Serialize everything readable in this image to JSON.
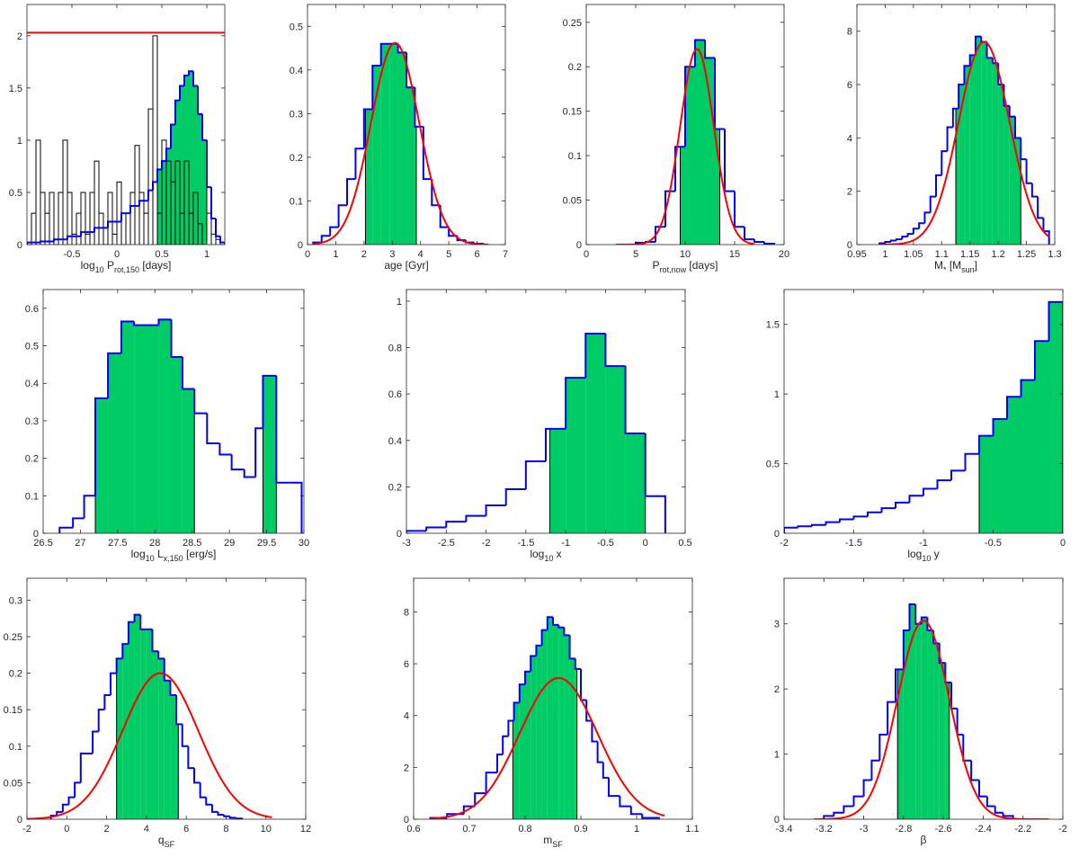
{
  "colors": {
    "fill": "#00cc66",
    "hist_line": "#0000ff",
    "fit": "#ff0000",
    "other": "#000000",
    "axis": "#262626"
  },
  "chart_data": [
    {
      "type": "histogram",
      "xlabel": {
        "main": "log",
        "sub1": "10",
        "mid": " P",
        "sub2": "rot,150",
        "tail": " [days]"
      },
      "xlim": [
        -1,
        1.2
      ],
      "ylim": [
        0,
        2.3
      ],
      "xticks": [
        -0.5,
        0,
        0.5,
        1
      ],
      "xtick_labels": [
        "-0.5",
        "0",
        "0.5",
        "1"
      ],
      "yticks": [
        0,
        0.5,
        1,
        1.5,
        2
      ],
      "ytick_labels": [
        "0",
        "0.5",
        "1",
        "1.5",
        "2"
      ],
      "blue_hist": {
        "edges": [
          -1,
          -0.85,
          -0.7,
          -0.55,
          -0.4,
          -0.25,
          -0.1,
          0.05,
          0.15,
          0.25,
          0.35,
          0.4,
          0.45,
          0.5,
          0.55,
          0.6,
          0.65,
          0.7,
          0.75,
          0.8,
          0.85,
          0.9,
          0.95,
          1.0,
          1.05,
          1.1,
          1.15,
          1.2
        ],
        "values": [
          0.02,
          0.03,
          0.05,
          0.08,
          0.12,
          0.16,
          0.22,
          0.3,
          0.37,
          0.42,
          0.52,
          0.6,
          0.72,
          0.8,
          0.92,
          1.15,
          1.38,
          1.52,
          1.62,
          1.66,
          1.52,
          1.25,
          1.0,
          0.55,
          0.25,
          0.08,
          0.02
        ]
      },
      "shade_range": [
        0.45,
        1.0
      ],
      "black_hist": {
        "edges": [
          -0.95,
          -0.9,
          -0.85,
          -0.8,
          -0.75,
          -0.7,
          -0.65,
          -0.6,
          -0.55,
          -0.5,
          -0.45,
          -0.4,
          -0.35,
          -0.3,
          -0.25,
          -0.2,
          -0.15,
          -0.1,
          -0.05,
          0,
          0.05,
          0.1,
          0.15,
          0.2,
          0.25,
          0.3,
          0.35,
          0.4,
          0.45,
          0.5,
          0.55,
          0.6,
          0.65,
          0.7,
          0.75,
          0.8,
          0.85,
          0.9,
          0.95,
          1.0,
          1.05,
          1.1,
          1.15
        ],
        "values": [
          0.3,
          1.0,
          0.5,
          0.3,
          0.5,
          0.0,
          0.5,
          1.0,
          0.5,
          0.1,
          0.3,
          0.5,
          0.1,
          0.5,
          0.8,
          0.3,
          0.0,
          0.5,
          0.1,
          0.6,
          0.0,
          0.3,
          0.5,
          0.95,
          0.5,
          0.3,
          1.3,
          2.0,
          0.3,
          1.0,
          0.8,
          0.6,
          0.8,
          0.3,
          0.8,
          0.3,
          0.5,
          0.2,
          0.0,
          0.3,
          0.1,
          0.05
        ]
      },
      "hline": 2.03
    },
    {
      "type": "histogram",
      "xlabel": {
        "main": "age [Gyr]"
      },
      "xlim": [
        0,
        7
      ],
      "ylim": [
        0,
        0.55
      ],
      "xticks": [
        0,
        1,
        2,
        3,
        4,
        5,
        6,
        7
      ],
      "xtick_labels": [
        "0",
        "1",
        "2",
        "3",
        "4",
        "5",
        "6",
        "7"
      ],
      "yticks": [
        0,
        0.1,
        0.2,
        0.3,
        0.4,
        0.5
      ],
      "ytick_labels": [
        "0",
        "0.1",
        "0.2",
        "0.3",
        "0.4",
        "0.5"
      ],
      "blue_hist": {
        "edges": [
          0.2,
          0.5,
          0.8,
          1.1,
          1.4,
          1.7,
          2.0,
          2.3,
          2.6,
          2.9,
          3.2,
          3.5,
          3.8,
          4.1,
          4.4,
          4.7,
          5.0,
          5.3,
          5.6,
          5.9,
          6.2
        ],
        "values": [
          0.005,
          0.02,
          0.04,
          0.09,
          0.15,
          0.22,
          0.31,
          0.41,
          0.46,
          0.46,
          0.44,
          0.36,
          0.27,
          0.15,
          0.09,
          0.04,
          0.02,
          0.01,
          0.005,
          0.002
        ]
      },
      "shade_range": [
        2.05,
        3.85
      ],
      "fit": {
        "mu": 3.1,
        "sigma": 0.85,
        "amp": 0.462,
        "range": [
          0.2,
          6.4
        ]
      }
    },
    {
      "type": "histogram",
      "xlabel": {
        "main": "P",
        "sub1": "rot,now",
        "tail": " [days]"
      },
      "xlim": [
        0,
        20
      ],
      "ylim": [
        0,
        0.27
      ],
      "xticks": [
        0,
        5,
        10,
        15,
        20
      ],
      "xtick_labels": [
        "0",
        "5",
        "10",
        "15",
        "20"
      ],
      "yticks": [
        0,
        0.05,
        0.1,
        0.15,
        0.2,
        0.25
      ],
      "ytick_labels": [
        "0",
        "0.05",
        "0.1",
        "0.15",
        "0.2",
        "0.25"
      ],
      "blue_hist": {
        "edges": [
          5,
          6,
          7,
          8,
          9,
          10,
          11,
          12,
          13,
          14,
          15,
          16,
          17,
          18,
          19
        ],
        "values": [
          0.002,
          0.003,
          0.02,
          0.06,
          0.11,
          0.2,
          0.23,
          0.21,
          0.13,
          0.06,
          0.02,
          0.006,
          0.003,
          0.001
        ]
      },
      "shade_range": [
        9.5,
        13.5
      ],
      "fit": {
        "mu": 11.2,
        "sigma": 1.7,
        "amp": 0.22,
        "range": [
          3,
          17
        ]
      }
    },
    {
      "type": "histogram",
      "xlabel": {
        "main": "M",
        "sub1": "*",
        "mid": " [M",
        "sub2": "sun",
        "tail": "]"
      },
      "xlim": [
        0.95,
        1.3
      ],
      "ylim": [
        0,
        9
      ],
      "xticks": [
        0.95,
        1,
        1.05,
        1.1,
        1.15,
        1.2,
        1.25,
        1.3
      ],
      "xtick_labels": [
        "0.95",
        "1",
        "1.05",
        "1.1",
        "1.15",
        "1.2",
        "1.25",
        "1.3"
      ],
      "yticks": [
        0,
        2,
        4,
        6,
        8
      ],
      "ytick_labels": [
        "0",
        "2",
        "4",
        "6",
        "8"
      ],
      "blue_hist": {
        "edges": [
          0.99,
          1.0,
          1.01,
          1.02,
          1.03,
          1.04,
          1.05,
          1.06,
          1.07,
          1.08,
          1.09,
          1.1,
          1.11,
          1.12,
          1.13,
          1.14,
          1.15,
          1.16,
          1.17,
          1.18,
          1.19,
          1.2,
          1.21,
          1.22,
          1.23,
          1.24,
          1.25,
          1.26,
          1.27,
          1.28,
          1.29
        ],
        "values": [
          0.05,
          0.1,
          0.15,
          0.2,
          0.3,
          0.4,
          0.6,
          0.8,
          1.2,
          1.8,
          2.6,
          3.5,
          4.4,
          5.1,
          6.0,
          6.7,
          7.1,
          7.8,
          7.6,
          7.0,
          6.8,
          6.0,
          5.2,
          4.8,
          4.0,
          3.2,
          2.3,
          1.8,
          1.0,
          0.5
        ]
      },
      "shade_range": [
        1.125,
        1.24
      ],
      "fit": {
        "mu": 1.175,
        "sigma": 0.045,
        "amp": 7.6,
        "range": [
          0.99,
          1.29
        ]
      }
    },
    {
      "type": "histogram",
      "xlabel": {
        "main": "log",
        "sub1": "10",
        "mid": " L",
        "sub2": "x,150",
        "tail": " [erg/s]"
      },
      "xlim": [
        26.5,
        30
      ],
      "ylim": [
        0,
        0.65
      ],
      "xticks": [
        26.5,
        27,
        27.5,
        28,
        28.5,
        29,
        29.5,
        30
      ],
      "xtick_labels": [
        "26.5",
        "27",
        "27.5",
        "28",
        "28.5",
        "29",
        "29.5",
        "30"
      ],
      "yticks": [
        0,
        0.1,
        0.2,
        0.3,
        0.4,
        0.5,
        0.6
      ],
      "ytick_labels": [
        "0",
        "0.1",
        "0.2",
        "0.3",
        "0.4",
        "0.5",
        "0.6"
      ],
      "blue_hist": {
        "edges": [
          26.72,
          26.9,
          27.05,
          27.2,
          27.37,
          27.55,
          27.72,
          27.9,
          28.05,
          28.22,
          28.37,
          28.53,
          28.7,
          28.87,
          29.03,
          29.2,
          29.35,
          29.45,
          29.63,
          29.81,
          29.97
        ],
        "values": [
          0.015,
          0.04,
          0.1,
          0.36,
          0.48,
          0.565,
          0.555,
          0.555,
          0.57,
          0.47,
          0.385,
          0.32,
          0.24,
          0.21,
          0.17,
          0.15,
          0.28,
          0.42,
          0.135,
          0.135
        ]
      },
      "shade_range": [
        [
          27.2,
          28.53
        ],
        [
          29.45,
          29.63
        ]
      ]
    },
    {
      "type": "histogram",
      "xlabel": {
        "main": "log",
        "sub1": "10",
        "tail": " x"
      },
      "xlim": [
        -3,
        0.5
      ],
      "ylim": [
        0,
        1.05
      ],
      "xticks": [
        -3,
        -2.5,
        -2,
        -1.5,
        -1,
        -0.5,
        0,
        0.5
      ],
      "xtick_labels": [
        "-3",
        "-2.5",
        "-2",
        "-1.5",
        "-1",
        "-0.5",
        "0",
        "0.5"
      ],
      "yticks": [
        0,
        0.2,
        0.4,
        0.6,
        0.8,
        1
      ],
      "ytick_labels": [
        "0",
        "0.2",
        "0.4",
        "0.6",
        "0.8",
        "1"
      ],
      "blue_hist": {
        "edges": [
          -3.0,
          -2.75,
          -2.5,
          -2.25,
          -2.0,
          -1.75,
          -1.5,
          -1.25,
          -1.0,
          -0.75,
          -0.5,
          -0.25,
          0.0,
          0.25
        ],
        "values": [
          0.01,
          0.025,
          0.05,
          0.075,
          0.12,
          0.19,
          0.31,
          0.45,
          0.67,
          0.86,
          0.72,
          0.43,
          0.16
        ]
      },
      "shade_range": [
        -1.2,
        0.0
      ]
    },
    {
      "type": "histogram",
      "xlabel": {
        "main": "log",
        "sub1": "10",
        "tail": " y"
      },
      "xlim": [
        -2,
        0
      ],
      "ylim": [
        0,
        1.75
      ],
      "xticks": [
        -2,
        -1.5,
        -1,
        -0.5,
        0
      ],
      "xtick_labels": [
        "-2",
        "-1.5",
        "-1",
        "-0.5",
        "0"
      ],
      "yticks": [
        0,
        0.5,
        1,
        1.5
      ],
      "ytick_labels": [
        "0",
        "0.5",
        "1",
        "1.5"
      ],
      "blue_hist": {
        "edges": [
          -2.0,
          -1.9,
          -1.8,
          -1.7,
          -1.6,
          -1.5,
          -1.4,
          -1.3,
          -1.2,
          -1.1,
          -1.0,
          -0.9,
          -0.8,
          -0.7,
          -0.6,
          -0.5,
          -0.4,
          -0.3,
          -0.2,
          -0.1,
          0.0
        ],
        "values": [
          0.04,
          0.05,
          0.06,
          0.08,
          0.1,
          0.12,
          0.15,
          0.18,
          0.22,
          0.27,
          0.32,
          0.38,
          0.45,
          0.57,
          0.7,
          0.82,
          0.98,
          1.1,
          1.38,
          1.66
        ]
      },
      "shade_range": [
        -0.6,
        0.0
      ]
    },
    {
      "type": "histogram",
      "xlabel": {
        "main": "q",
        "sub1": "SF"
      },
      "xlim": [
        -2,
        12
      ],
      "ylim": [
        0,
        0.33
      ],
      "xticks": [
        -2,
        0,
        2,
        4,
        6,
        8,
        10,
        12
      ],
      "xtick_labels": [
        "-2",
        "0",
        "2",
        "4",
        "6",
        "8",
        "10",
        "12"
      ],
      "yticks": [
        0,
        0.05,
        0.1,
        0.15,
        0.2,
        0.25,
        0.3
      ],
      "ytick_labels": [
        "0",
        "0.05",
        "0.1",
        "0.15",
        "0.2",
        "0.25",
        "0.3"
      ],
      "blue_hist": {
        "edges": [
          -0.8,
          -0.5,
          -0.2,
          0.1,
          0.4,
          0.7,
          1.0,
          1.3,
          1.6,
          1.9,
          2.2,
          2.5,
          2.8,
          3.1,
          3.4,
          3.7,
          4.0,
          4.3,
          4.6,
          4.9,
          5.2,
          5.5,
          5.8,
          6.1,
          6.4,
          6.7,
          7.0,
          7.3,
          7.6,
          7.9,
          8.2,
          8.5,
          8.8
        ],
        "values": [
          0.005,
          0.01,
          0.02,
          0.03,
          0.05,
          0.09,
          0.09,
          0.12,
          0.15,
          0.17,
          0.2,
          0.22,
          0.24,
          0.27,
          0.28,
          0.26,
          0.26,
          0.23,
          0.22,
          0.19,
          0.17,
          0.13,
          0.1,
          0.07,
          0.05,
          0.03,
          0.02,
          0.01,
          0.006,
          0.004,
          0.002,
          0.001
        ]
      },
      "shade_range": [
        2.5,
        5.6
      ],
      "fit": {
        "mu": 4.7,
        "sigma": 1.9,
        "amp": 0.2,
        "range": [
          -2,
          10.3
        ]
      }
    },
    {
      "type": "histogram",
      "xlabel": {
        "main": "m",
        "sub1": "SF"
      },
      "xlim": [
        0.6,
        1.1
      ],
      "ylim": [
        0,
        9.3
      ],
      "xticks": [
        0.6,
        0.7,
        0.8,
        0.9,
        1,
        1.1
      ],
      "xtick_labels": [
        "0.6",
        "0.7",
        "0.8",
        "0.9",
        "1",
        "1.1"
      ],
      "yticks": [
        0,
        2,
        4,
        6,
        8
      ],
      "ytick_labels": [
        "0",
        "2",
        "4",
        "6",
        "8"
      ],
      "blue_hist": {
        "edges": [
          0.63,
          0.66,
          0.69,
          0.71,
          0.73,
          0.75,
          0.76,
          0.77,
          0.78,
          0.79,
          0.8,
          0.81,
          0.82,
          0.83,
          0.84,
          0.85,
          0.86,
          0.87,
          0.88,
          0.89,
          0.9,
          0.91,
          0.92,
          0.93,
          0.94,
          0.95,
          0.97,
          0.99,
          1.01,
          1.04
        ],
        "values": [
          0.05,
          0.2,
          0.5,
          1.0,
          1.8,
          2.5,
          3.2,
          3.8,
          4.5,
          5.2,
          5.7,
          6.3,
          6.7,
          7.3,
          7.8,
          7.5,
          7.4,
          7.1,
          6.2,
          5.8,
          4.6,
          3.8,
          3.0,
          2.2,
          1.6,
          0.9,
          0.5,
          0.2,
          0.05
        ]
      },
      "shade_range": [
        0.778,
        0.893
      ],
      "fit": {
        "mu": 0.86,
        "sigma": 0.07,
        "amp": 5.45,
        "range": [
          0.63,
          1.05
        ]
      }
    },
    {
      "type": "histogram",
      "xlabel": {
        "main": "β"
      },
      "xlim": [
        -3.4,
        -2
      ],
      "ylim": [
        0,
        3.7
      ],
      "xticks": [
        -3.4,
        -3.2,
        -3,
        -2.8,
        -2.6,
        -2.4,
        -2.2,
        -2
      ],
      "xtick_labels": [
        "-3.4",
        "-3.2",
        "-3",
        "-2.8",
        "-2.6",
        "-2.4",
        "-2.2",
        "-2"
      ],
      "yticks": [
        0,
        1,
        2,
        3
      ],
      "ytick_labels": [
        "0",
        "1",
        "2",
        "3"
      ],
      "blue_hist": {
        "edges": [
          -3.2,
          -3.15,
          -3.1,
          -3.05,
          -3.0,
          -2.96,
          -2.92,
          -2.88,
          -2.84,
          -2.8,
          -2.77,
          -2.74,
          -2.71,
          -2.68,
          -2.65,
          -2.62,
          -2.59,
          -2.56,
          -2.53,
          -2.5,
          -2.46,
          -2.42,
          -2.38,
          -2.34,
          -2.3,
          -2.25
        ],
        "values": [
          0.05,
          0.1,
          0.2,
          0.35,
          0.6,
          0.9,
          1.3,
          1.8,
          2.3,
          2.9,
          3.3,
          3.0,
          3.1,
          2.9,
          2.7,
          2.4,
          2.1,
          1.7,
          1.3,
          0.9,
          0.6,
          0.35,
          0.2,
          0.1,
          0.05
        ]
      },
      "shade_range": [
        -2.83,
        -2.57
      ],
      "fit": {
        "mu": -2.7,
        "sigma": 0.13,
        "amp": 3.05,
        "range": [
          -3.25,
          -2.07
        ]
      }
    }
  ]
}
